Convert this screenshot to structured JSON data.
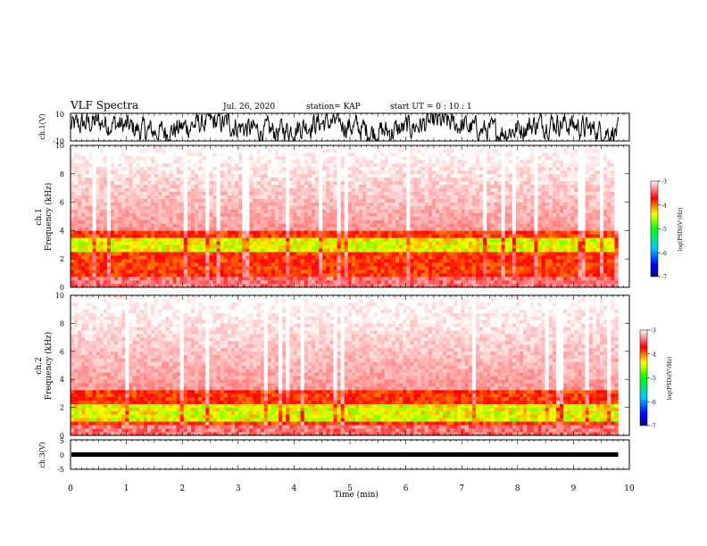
{
  "header": {
    "title": "VLF Spectra",
    "date": "Jul. 26, 2020",
    "station": "station= KAP",
    "start": "start UT =  0 : 10 : 1"
  },
  "colors": {
    "spectrum": [
      "#000080",
      "#0000ff",
      "#00c8ff",
      "#00ff00",
      "#ffff00",
      "#ff0000",
      "#ffffff"
    ],
    "trace": "#000000"
  },
  "chart_data": [
    {
      "type": "line",
      "name": "ch.1 waveform",
      "ylabel": "ch.1(V)",
      "ylim": [
        -10,
        10
      ],
      "yticks": [
        "10",
        "-10"
      ],
      "xlim": [
        0,
        10
      ],
      "note": "dense noisy waveform, plotted for about 0 to 9.8 min"
    },
    {
      "type": "heatmap",
      "ylabel": "ch.1",
      "ylabel2": "Frequency (kHz)",
      "ylim": [
        0,
        10
      ],
      "yticks": [
        "0",
        "2",
        "4",
        "6",
        "8",
        "10"
      ],
      "xlim": [
        0,
        10
      ],
      "x_end": 9.8,
      "band_top_khz": 4.0,
      "green_core_khz": [
        2.4,
        3.4
      ],
      "colorbar": {
        "label": "log(PSD)(V²/Hz)",
        "ticks": [
          "-3",
          "-4",
          "-5",
          "-6",
          "-7"
        ],
        "range": [
          -7,
          -3
        ]
      }
    },
    {
      "type": "heatmap",
      "ylabel": "ch.2",
      "ylabel2": "Frequency (kHz)",
      "ylim": [
        0,
        10
      ],
      "yticks": [
        "0",
        "2",
        "4",
        "6",
        "8",
        "10"
      ],
      "xlim": [
        0,
        10
      ],
      "x_end": 9.8,
      "band_top_khz": 3.3,
      "green_core_khz": [
        1.0,
        2.2
      ],
      "colorbar": {
        "label": "log(PSD)(V²/Hz)",
        "ticks": [
          "-3",
          "-4",
          "-5",
          "-6",
          "-7"
        ],
        "range": [
          -7,
          -3
        ]
      }
    },
    {
      "type": "line",
      "name": "ch.3 waveform",
      "ylabel": "ch.3(V)",
      "ylim": [
        -5,
        5
      ],
      "yticks": [
        "5",
        "0",
        "-5"
      ],
      "level": 0,
      "xlim": [
        0,
        10
      ],
      "xlabel": "Time (min)",
      "xticks": [
        "0",
        "1",
        "2",
        "3",
        "4",
        "5",
        "6",
        "7",
        "8",
        "9",
        "10"
      ]
    }
  ]
}
